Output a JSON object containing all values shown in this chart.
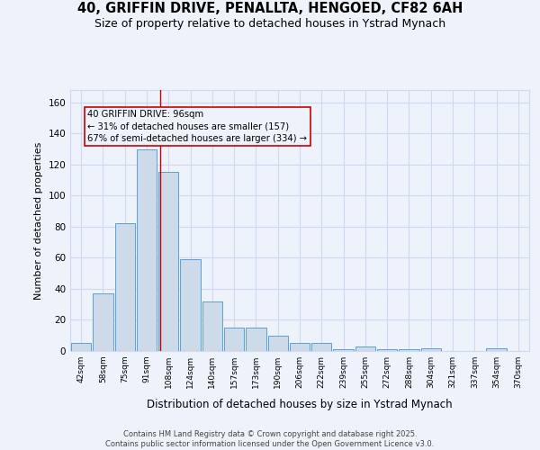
{
  "title_line1": "40, GRIFFIN DRIVE, PENALLTA, HENGOED, CF82 6AH",
  "title_line2": "Size of property relative to detached houses in Ystrad Mynach",
  "xlabel": "Distribution of detached houses by size in Ystrad Mynach",
  "ylabel": "Number of detached properties",
  "categories": [
    "42sqm",
    "58sqm",
    "75sqm",
    "91sqm",
    "108sqm",
    "124sqm",
    "140sqm",
    "157sqm",
    "173sqm",
    "190sqm",
    "206sqm",
    "222sqm",
    "239sqm",
    "255sqm",
    "272sqm",
    "288sqm",
    "304sqm",
    "321sqm",
    "337sqm",
    "354sqm",
    "370sqm"
  ],
  "values": [
    5,
    37,
    82,
    130,
    115,
    59,
    32,
    15,
    15,
    10,
    5,
    5,
    1,
    3,
    1,
    1,
    2,
    0,
    0,
    2,
    0
  ],
  "bar_color": "#ccdaea",
  "bar_edge_color": "#5a9fd4",
  "bar_edge_width": 0.7,
  "vline_x": 3.6,
  "vline_color": "#cc0000",
  "annotation_text": "40 GRIFFIN DRIVE: 96sqm\n← 31% of detached houses are smaller (157)\n67% of semi-detached houses are larger (334) →",
  "ylim": [
    0,
    168
  ],
  "yticks": [
    0,
    20,
    40,
    60,
    80,
    100,
    120,
    140,
    160
  ],
  "bg_color": "#eef2fb",
  "grid_color": "#d0d8f0",
  "footer": "Contains HM Land Registry data © Crown copyright and database right 2025.\nContains public sector information licensed under the Open Government Licence v3.0.",
  "title_fontsize": 10.5,
  "subtitle_fontsize": 9
}
